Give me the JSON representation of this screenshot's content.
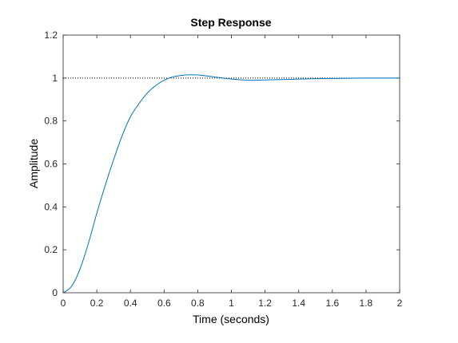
{
  "chart_data": {
    "type": "line",
    "title": "Step Response",
    "xlabel": "Time (seconds)",
    "ylabel": "Amplitude",
    "xlim": [
      0,
      2
    ],
    "ylim": [
      0,
      1.2
    ],
    "xticks": [
      "0",
      "0.2",
      "0.4",
      "0.6",
      "0.8",
      "1",
      "1.2",
      "1.4",
      "1.6",
      "1.8",
      "2"
    ],
    "yticks": [
      "0",
      "0.2",
      "0.4",
      "0.6",
      "0.8",
      "1",
      "1.2"
    ],
    "grid": false,
    "reference_line": {
      "y": 1,
      "style": "dotted",
      "color": "#000000"
    },
    "series": [
      {
        "color": "#0072bd",
        "x": [
          0,
          0.05,
          0.1,
          0.15,
          0.2,
          0.25,
          0.3,
          0.35,
          0.4,
          0.45,
          0.5,
          0.55,
          0.6,
          0.65,
          0.7,
          0.75,
          0.8,
          0.85,
          0.9,
          0.95,
          1.0,
          1.05,
          1.1,
          1.15,
          1.2,
          1.3,
          1.4,
          1.5,
          1.6,
          1.7,
          1.8,
          1.9,
          2.0
        ],
        "y": [
          0,
          0.03,
          0.11,
          0.23,
          0.37,
          0.5,
          0.62,
          0.73,
          0.82,
          0.88,
          0.93,
          0.965,
          0.99,
          1.005,
          1.012,
          1.015,
          1.014,
          1.01,
          1.005,
          1.0,
          0.995,
          0.992,
          0.99,
          0.99,
          0.991,
          0.993,
          0.995,
          0.997,
          0.998,
          0.999,
          1.0,
          1.0,
          1.0
        ]
      }
    ]
  },
  "colors": {
    "axes": "#262626",
    "line": "#0072bd",
    "background": "#ffffff"
  }
}
